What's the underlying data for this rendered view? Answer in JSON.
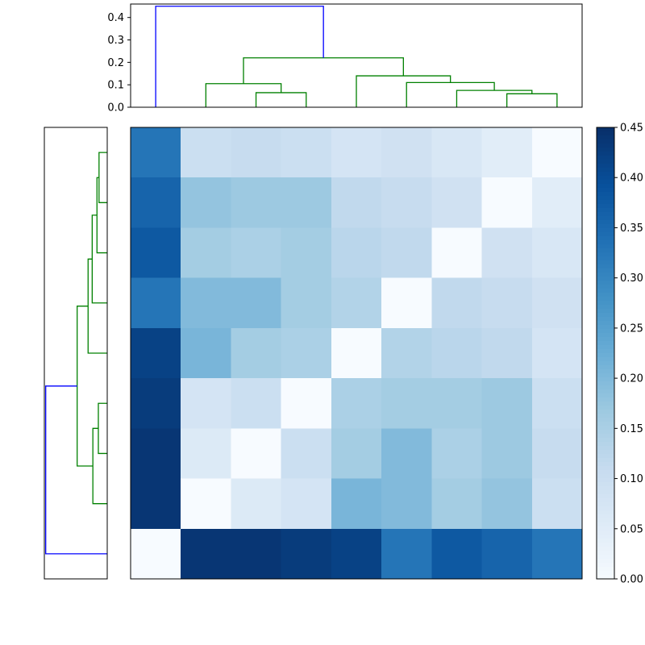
{
  "chart_data": {
    "type": "heatmap",
    "title": "",
    "description": "Hierarchically clustered 9x9 distance matrix (clustermap) with top and left dendrograms and a Blues colorbar",
    "matrix": {
      "rows": 9,
      "cols": 9,
      "vmin": 0.0,
      "vmax": 0.45,
      "colormap": "Blues",
      "values": [
        [
          0.33,
          0.1,
          0.11,
          0.1,
          0.08,
          0.09,
          0.07,
          0.05,
          0.0
        ],
        [
          0.36,
          0.18,
          0.17,
          0.17,
          0.12,
          0.11,
          0.09,
          0.0,
          0.05
        ],
        [
          0.38,
          0.16,
          0.15,
          0.16,
          0.13,
          0.12,
          0.0,
          0.09,
          0.07
        ],
        [
          0.33,
          0.2,
          0.2,
          0.16,
          0.14,
          0.0,
          0.12,
          0.11,
          0.09
        ],
        [
          0.42,
          0.21,
          0.16,
          0.15,
          0.0,
          0.14,
          0.13,
          0.12,
          0.08
        ],
        [
          0.43,
          0.08,
          0.1,
          0.0,
          0.15,
          0.16,
          0.16,
          0.17,
          0.1
        ],
        [
          0.44,
          0.06,
          0.0,
          0.1,
          0.16,
          0.2,
          0.15,
          0.17,
          0.11
        ],
        [
          0.44,
          0.0,
          0.06,
          0.08,
          0.21,
          0.2,
          0.16,
          0.18,
          0.1
        ],
        [
          0.0,
          0.44,
          0.44,
          0.43,
          0.42,
          0.33,
          0.38,
          0.36,
          0.33
        ]
      ]
    },
    "top_dendrogram": {
      "ylim": [
        0,
        0.46
      ],
      "tick_labels": [
        "0.0",
        "0.1",
        "0.2",
        "0.3",
        "0.4"
      ],
      "tick_values": [
        0.0,
        0.1,
        0.2,
        0.3,
        0.4
      ],
      "links": [
        {
          "i": [
            25,
            25,
            35,
            35
          ],
          "d": [
            0,
            0.065,
            0.065,
            0
          ],
          "color": "green"
        },
        {
          "i": [
            15,
            15,
            30,
            30
          ],
          "d": [
            0,
            0.105,
            0.105,
            0.065
          ],
          "color": "green"
        },
        {
          "i": [
            75,
            75,
            85,
            85
          ],
          "d": [
            0,
            0.06,
            0.06,
            0
          ],
          "color": "green"
        },
        {
          "i": [
            65,
            65,
            80,
            80
          ],
          "d": [
            0,
            0.075,
            0.075,
            0.06
          ],
          "color": "green"
        },
        {
          "i": [
            55,
            55,
            72.5,
            72.5
          ],
          "d": [
            0,
            0.11,
            0.11,
            0.075
          ],
          "color": "green"
        },
        {
          "i": [
            45,
            45,
            63.75,
            63.75
          ],
          "d": [
            0,
            0.14,
            0.14,
            0.11
          ],
          "color": "green"
        },
        {
          "i": [
            22.5,
            22.5,
            54.375,
            54.375
          ],
          "d": [
            0.105,
            0.22,
            0.22,
            0.14
          ],
          "color": "green"
        },
        {
          "i": [
            5,
            5,
            38.4375,
            38.4375
          ],
          "d": [
            0,
            0.45,
            0.45,
            0.22
          ],
          "color": "blue"
        }
      ]
    },
    "left_dendrogram": {
      "xlim": [
        0,
        0.46
      ],
      "links": [
        {
          "i": [
            5,
            5,
            15,
            15
          ],
          "d": [
            0,
            0.06,
            0.06,
            0
          ],
          "color": "green"
        },
        {
          "i": [
            10,
            10,
            25,
            25
          ],
          "d": [
            0.06,
            0.075,
            0.075,
            0
          ],
          "color": "green"
        },
        {
          "i": [
            17.5,
            17.5,
            35,
            35
          ],
          "d": [
            0.075,
            0.11,
            0.11,
            0
          ],
          "color": "green"
        },
        {
          "i": [
            26.25,
            26.25,
            45,
            45
          ],
          "d": [
            0.11,
            0.14,
            0.14,
            0
          ],
          "color": "green"
        },
        {
          "i": [
            55,
            55,
            65,
            65
          ],
          "d": [
            0,
            0.065,
            0.065,
            0
          ],
          "color": "green"
        },
        {
          "i": [
            60,
            60,
            75,
            75
          ],
          "d": [
            0.065,
            0.105,
            0.105,
            0
          ],
          "color": "green"
        },
        {
          "i": [
            35.625,
            35.625,
            67.5,
            67.5
          ],
          "d": [
            0.14,
            0.22,
            0.22,
            0.105
          ],
          "color": "green"
        },
        {
          "i": [
            51.5625,
            51.5625,
            85,
            85
          ],
          "d": [
            0.22,
            0.45,
            0.45,
            0
          ],
          "color": "blue"
        }
      ]
    },
    "colorbar": {
      "vmin": 0.0,
      "vmax": 0.45,
      "tick_labels": [
        "0.45",
        "0.40",
        "0.35",
        "0.30",
        "0.25",
        "0.20",
        "0.15",
        "0.10",
        "0.05",
        "0.00"
      ],
      "tick_values": [
        0.45,
        0.4,
        0.35,
        0.3,
        0.25,
        0.2,
        0.15,
        0.1,
        0.05,
        0.0
      ]
    },
    "colors": {
      "dendrogram_blue": "#0000ff",
      "dendrogram_green": "#008000",
      "axis_border": "#000000",
      "background": "#ffffff"
    }
  }
}
